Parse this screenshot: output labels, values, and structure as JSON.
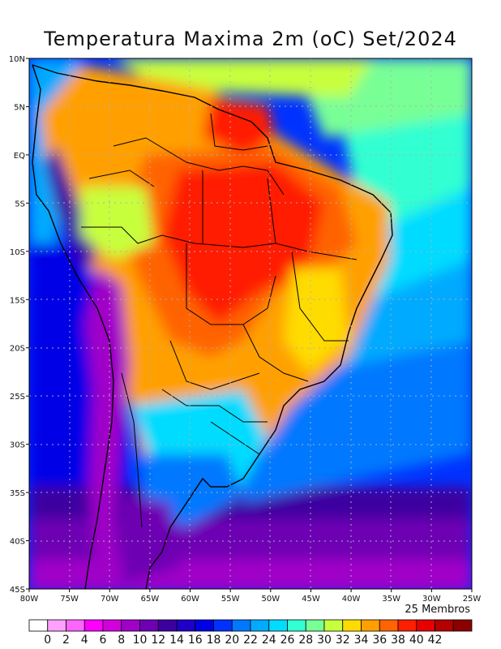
{
  "title": "Temperatura Maxima 2m (oC) Set/2024",
  "members_label": "25 Membros",
  "lat_ticks": [
    "10N",
    "5N",
    "EQ",
    "5S",
    "10S",
    "15S",
    "20S",
    "25S",
    "30S",
    "35S",
    "40S",
    "45S"
  ],
  "lon_ticks": [
    "80W",
    "75W",
    "70W",
    "65W",
    "60W",
    "55W",
    "50W",
    "45W",
    "40W",
    "35W",
    "30W",
    "25W"
  ],
  "colorbar": {
    "labels": [
      "0",
      "2",
      "4",
      "6",
      "8",
      "10",
      "12",
      "14",
      "16",
      "18",
      "20",
      "22",
      "24",
      "26",
      "28",
      "30",
      "32",
      "34",
      "36",
      "38",
      "40",
      "42"
    ],
    "colors": [
      "#ffffff",
      "#ffa0ff",
      "#ff64ff",
      "#ff00ff",
      "#d200dc",
      "#a000c8",
      "#6e00b4",
      "#3c00a0",
      "#1e00c8",
      "#0000e6",
      "#0032ff",
      "#0078ff",
      "#00aaff",
      "#00dcff",
      "#32ffd2",
      "#78ff96",
      "#c8ff3c",
      "#ffdc00",
      "#ffa000",
      "#ff6400",
      "#ff1e00",
      "#e60000",
      "#b40000",
      "#8c0000"
    ]
  }
}
